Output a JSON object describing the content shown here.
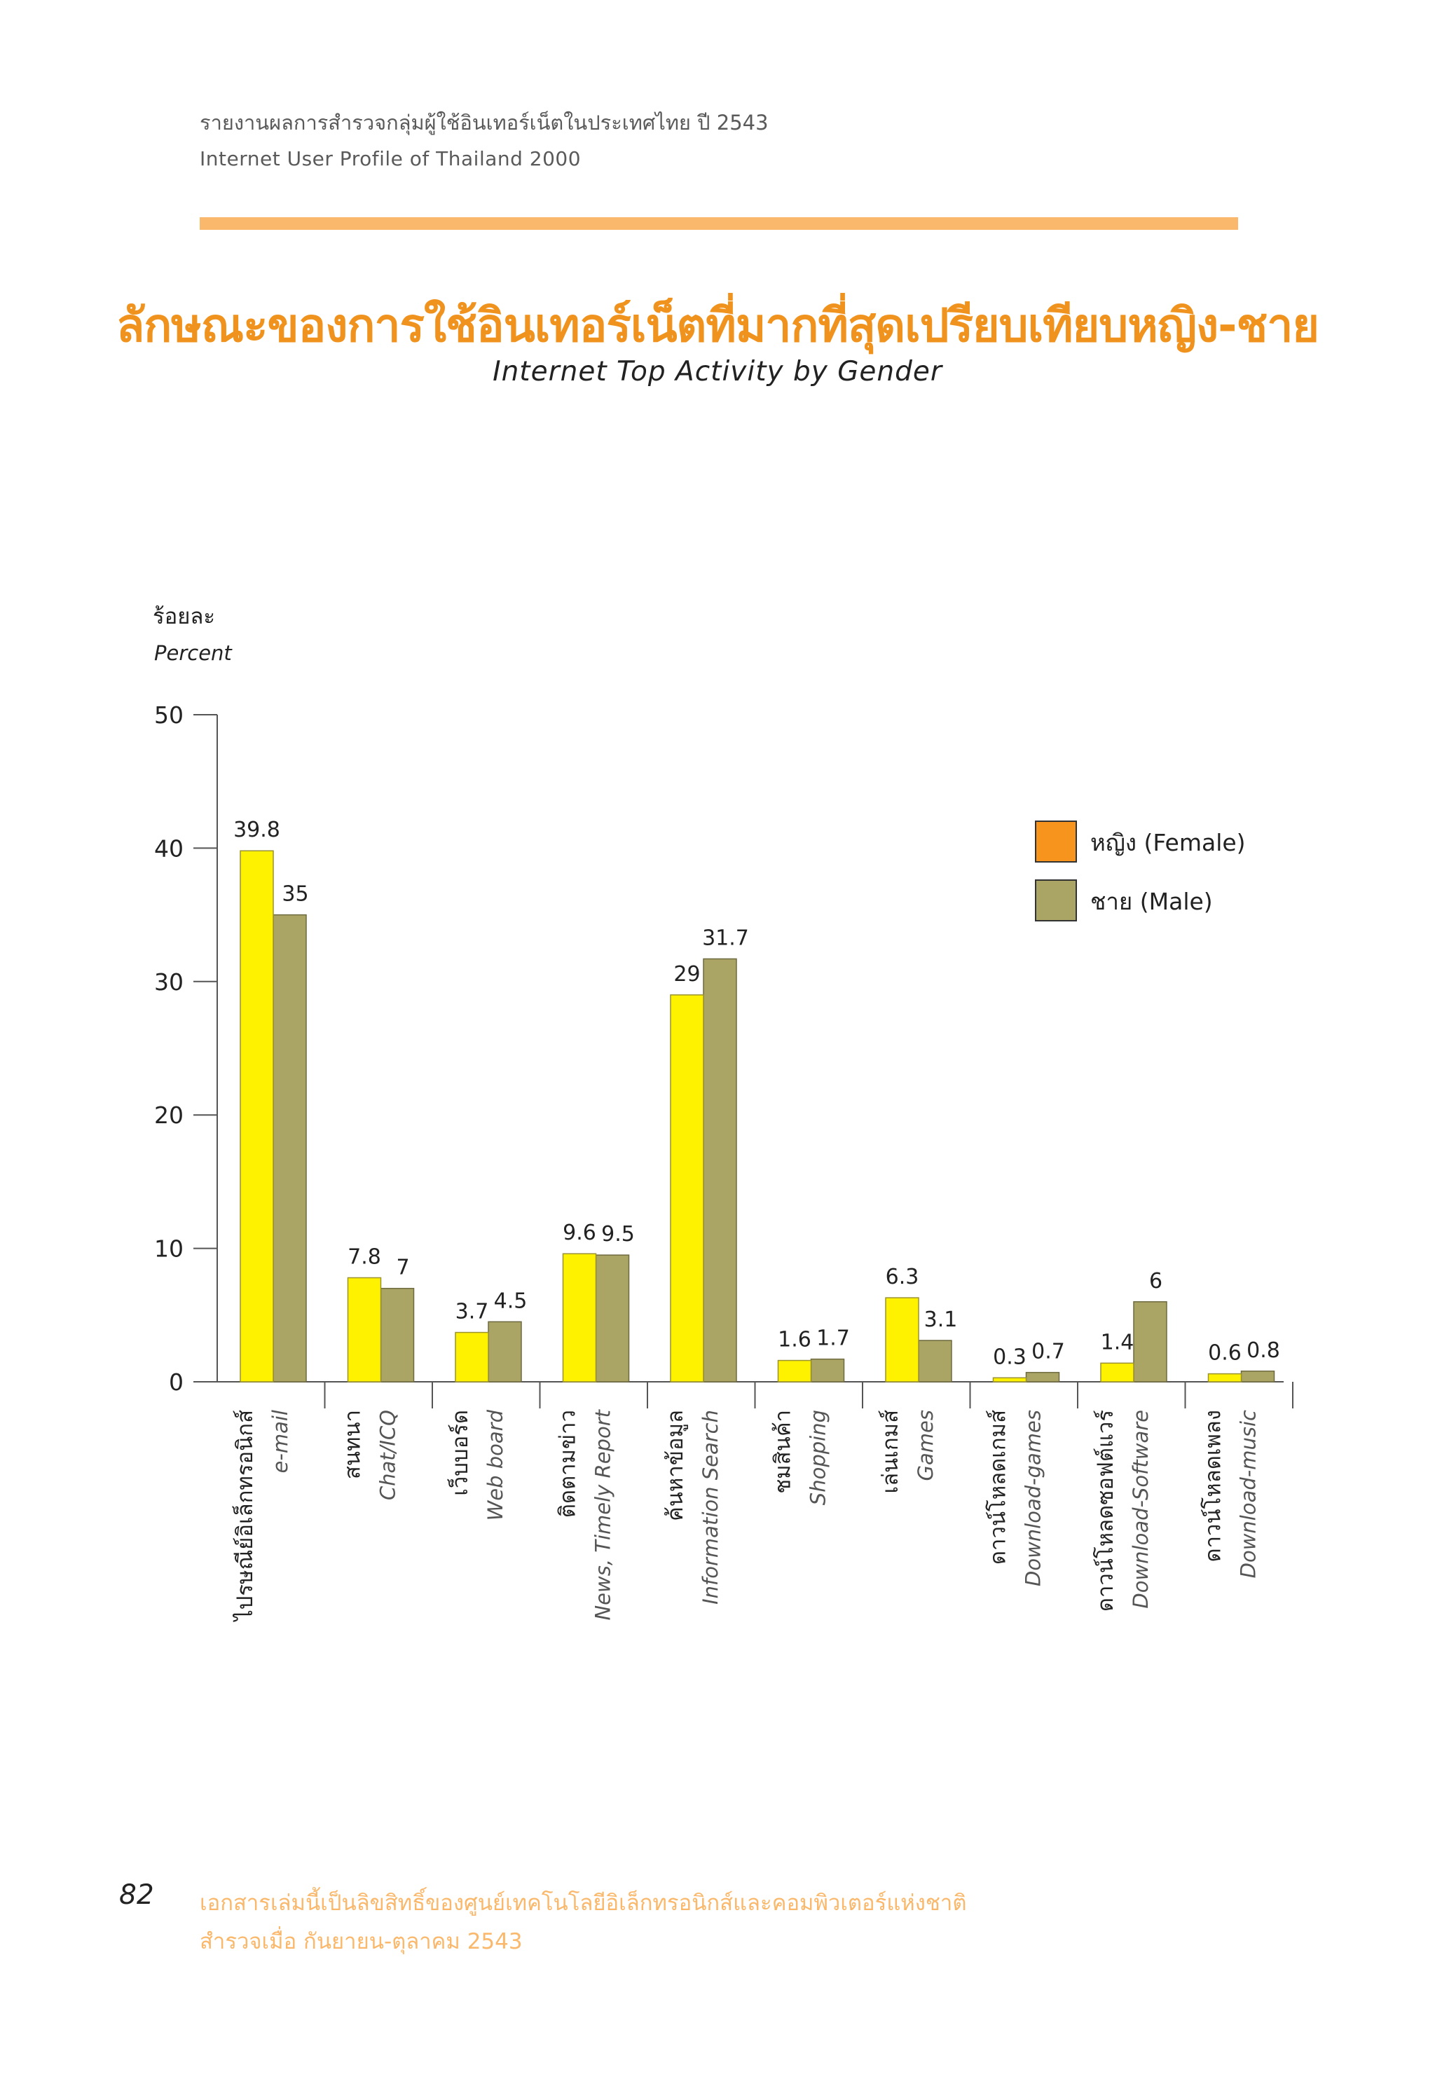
{
  "header": {
    "line1": "รายงานผลการสำรวจกลุ่มผู้ใช้อินเทอร์เน็ตในประเทศไทย ปี 2543",
    "line2": "Internet User Profile of Thailand 2000"
  },
  "colors": {
    "female": "#fff200",
    "male": "#aba565",
    "legend_female": "#f7941d",
    "title": "#f0931e",
    "stripe": "#f9b86b",
    "axis": "#555555"
  },
  "footer": {
    "page_number": "82",
    "line1": "เอกสารเล่มนี้เป็นลิขสิทธิ์ของศูนย์เทคโนโลยีอิเล็กทรอนิกส์และคอมพิวเตอร์แห่งชาติ",
    "line2": "สำรวจเมื่อ กันยายน-ตุลาคม 2543"
  },
  "chart_data": {
    "type": "bar",
    "title": "ลักษณะของการใช้อินเทอร์เน็ตที่มากที่สุดเปรียบเทียบหญิง-ชาย",
    "subtitle": "Internet Top Activity by Gender",
    "ylabel": "ร้อยละ",
    "ylabel_en": "Percent",
    "ylim": [
      0,
      50
    ],
    "yticks": [
      0,
      10,
      20,
      30,
      40,
      50
    ],
    "grid": false,
    "legend_position": "top-right",
    "categories": [
      {
        "th": "ไปรษณีย์อิเล็กทรอนิกส์",
        "en": "e-mail"
      },
      {
        "th": "สนทนา",
        "en": "Chat/ICQ"
      },
      {
        "th": "เว็บบอร์ด",
        "en": "Web board"
      },
      {
        "th": "ติดตามข่าว",
        "en": "News, Timely Report"
      },
      {
        "th": "ค้นหาข้อมูล",
        "en": "Information Search"
      },
      {
        "th": "ชมสินค้า",
        "en": "Shopping"
      },
      {
        "th": "เล่นเกมส์",
        "en": "Games"
      },
      {
        "th": "ดาวน์โหลดเกมส์",
        "en": "Download-games"
      },
      {
        "th": "ดาวน์โหลดซอฟต์แวร์",
        "en": "Download-Software"
      },
      {
        "th": "ดาวน์โหลดเพลง",
        "en": "Download-music"
      }
    ],
    "series": [
      {
        "name": "หญิง (Female)",
        "key": "female",
        "values": [
          39.8,
          7.8,
          3.7,
          9.6,
          29,
          1.6,
          6.3,
          0.3,
          1.4,
          0.6
        ]
      },
      {
        "name": "ชาย (Male)",
        "key": "male",
        "values": [
          35,
          7,
          4.5,
          9.5,
          31.7,
          1.7,
          3.1,
          0.7,
          6,
          0.8
        ]
      }
    ]
  }
}
